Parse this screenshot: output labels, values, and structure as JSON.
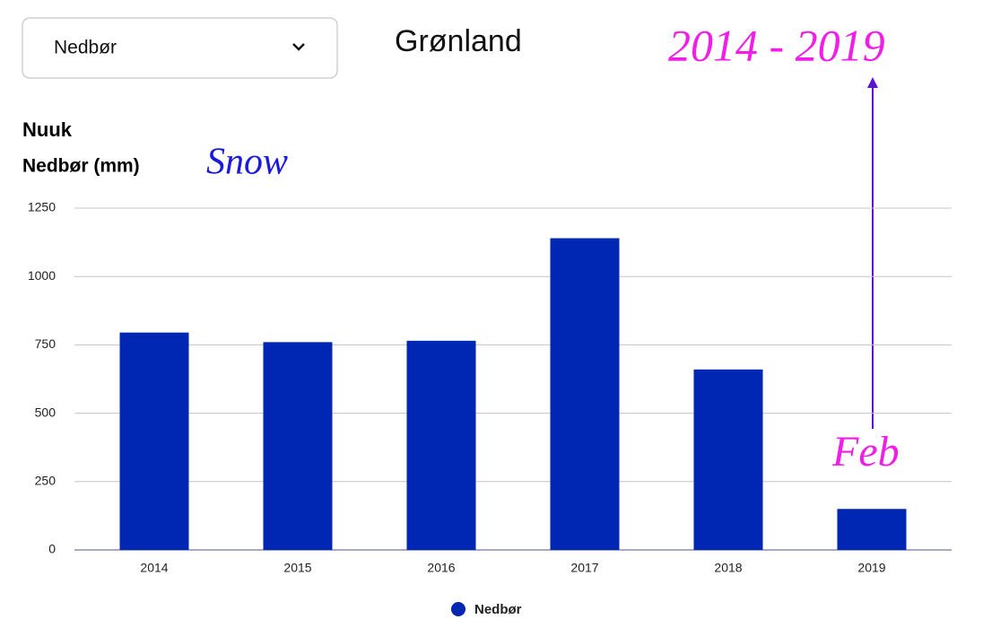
{
  "chart_data": {
    "type": "bar",
    "dropdown": "Nedbør",
    "title": "Grønland",
    "location": "Nuuk",
    "y_label": "Nedbør (mm)",
    "annotations": [
      "Snow",
      "2014 - 2019",
      "Feb"
    ],
    "categories": [
      "2014",
      "2015",
      "2016",
      "2017",
      "2018",
      "2019"
    ],
    "series": [
      {
        "name": "Nedbør",
        "color": "#0027b3",
        "values": [
          795,
          760,
          765,
          1140,
          660,
          150
        ]
      }
    ],
    "ylim": [
      0,
      1250
    ],
    "yticks": [
      0,
      250,
      500,
      750,
      1000,
      1250
    ],
    "grid": true,
    "legend": "bottom"
  }
}
